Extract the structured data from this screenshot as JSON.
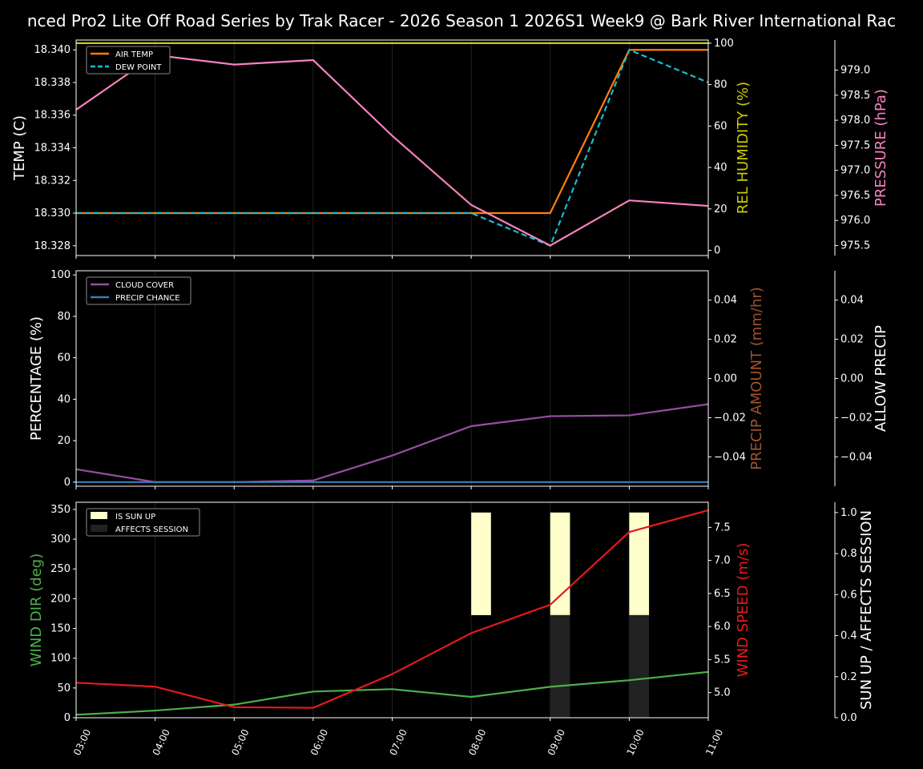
{
  "title": "nced Pro2 Lite Off Road Series by Trak Racer - 2026 Season 1 2026S1 Week9 @ Bark River International Rac",
  "chart_data": [
    {
      "type": "line",
      "x": [
        "03:00",
        "04:00",
        "05:00",
        "06:00",
        "07:00",
        "08:00",
        "09:00",
        "10:00",
        "11:00"
      ],
      "ylabel": "TEMP (C)",
      "ylim": [
        18.3274,
        18.3406
      ],
      "yticks": [
        "18.328",
        "18.330",
        "18.332",
        "18.334",
        "18.336",
        "18.338",
        "18.340"
      ],
      "right_axes": [
        {
          "label": "REL HUMIDITY (%)",
          "color": "#cccc00",
          "ylim": [
            -2.5,
            101.5
          ],
          "ticks": [
            "0",
            "20",
            "40",
            "60",
            "80",
            "100"
          ]
        },
        {
          "label": "PRESSURE (hPa)",
          "color": "#f781bf",
          "ylim": [
            975.3,
            979.6
          ],
          "ticks": [
            "975.5",
            "976.0",
            "976.5",
            "977.0",
            "977.5",
            "978.0",
            "978.5",
            "979.0"
          ]
        }
      ],
      "series": [
        {
          "name": "AIR TEMP",
          "color": "#ff7f0e",
          "axis": "left",
          "values": [
            18.33,
            18.33,
            18.33,
            18.33,
            18.33,
            18.33,
            18.33,
            18.34,
            18.34
          ]
        },
        {
          "name": "DEW POINT",
          "color": "#17becf",
          "dashed": true,
          "axis": "left",
          "values": [
            18.33,
            18.33,
            18.33,
            18.33,
            18.33,
            18.33,
            18.328,
            18.34,
            18.338
          ]
        },
        {
          "color": "#cccc00",
          "axis": "right0",
          "values": [
            100,
            100,
            100,
            100,
            100,
            100,
            100,
            100,
            100
          ]
        },
        {
          "color": "#f781bf",
          "axis": "right1",
          "values": [
            978.21,
            979.3,
            979.11,
            979.2,
            977.69,
            976.31,
            975.5,
            976.4,
            976.29
          ]
        }
      ],
      "legend": "top-left",
      "grid": true
    },
    {
      "type": "line",
      "x": [
        "03:00",
        "04:00",
        "05:00",
        "06:00",
        "07:00",
        "08:00",
        "09:00",
        "10:00",
        "11:00"
      ],
      "ylabel": "PERCENTAGE (%)",
      "ylim": [
        -2,
        102
      ],
      "yticks": [
        "0",
        "20",
        "40",
        "60",
        "80",
        "100"
      ],
      "right_axes": [
        {
          "label": "PRECIP AMOUNT (mm/hr)",
          "color": "#a0522d",
          "ylim": [
            -0.055,
            0.055
          ],
          "ticks": [
            "−0.04",
            "−0.02",
            "0.00",
            "0.02",
            "0.04"
          ]
        },
        {
          "label": "ALLOW PRECIP",
          "color": "#ffffff",
          "ylim": [
            -0.055,
            0.055
          ],
          "ticks": [
            "−0.04",
            "−0.02",
            "0.00",
            "0.02",
            "0.04"
          ]
        }
      ],
      "series": [
        {
          "name": "CLOUD COVER",
          "color": "#984ea3",
          "axis": "left",
          "values": [
            6.2,
            0,
            0,
            0.8,
            12.8,
            27,
            31.8,
            32.2,
            37.6
          ]
        },
        {
          "name": "PRECIP CHANCE",
          "color": "#377eb8",
          "axis": "left",
          "values": [
            0,
            0,
            0,
            0,
            0,
            0,
            0,
            0,
            0
          ]
        }
      ],
      "legend": "top-left",
      "grid": true
    },
    {
      "type": "line",
      "x": [
        "03:00",
        "04:00",
        "05:00",
        "06:00",
        "07:00",
        "08:00",
        "09:00",
        "10:00",
        "11:00"
      ],
      "ylabel": "WIND DIR (deg)",
      "ylabel_color": "#4daf4a",
      "ylim": [
        0,
        362
      ],
      "yticks": [
        "0",
        "50",
        "100",
        "150",
        "200",
        "250",
        "300",
        "350"
      ],
      "right_axes": [
        {
          "label": "WIND SPEED (m/s)",
          "color": "#e41a1c",
          "ylim": [
            4.62,
            7.88
          ],
          "ticks": [
            "5.0",
            "5.5",
            "6.0",
            "6.5",
            "7.0",
            "7.5"
          ]
        },
        {
          "label": "SUN UP / AFFECTS SESSION",
          "color": "#ffffff",
          "ylim": [
            0,
            1.05
          ],
          "ticks": [
            "0.0",
            "0.2",
            "0.4",
            "0.6",
            "0.8",
            "1.0"
          ]
        }
      ],
      "series": [
        {
          "color": "#4daf4a",
          "axis": "left",
          "values": [
            5,
            12,
            22,
            44,
            48,
            35,
            52,
            63,
            77
          ]
        },
        {
          "color": "#e41a1c",
          "axis": "right0",
          "values": [
            5.15,
            5.09,
            4.78,
            4.77,
            5.28,
            5.9,
            6.33,
            7.43,
            7.76
          ]
        }
      ],
      "bars": [
        {
          "name": "IS SUN UP",
          "color": "#ffffcc",
          "axis": "right1",
          "from": 0.5,
          "to": 1.0,
          "at": [
            "08:00",
            "09:00",
            "10:00"
          ]
        },
        {
          "name": "AFFECTS SESSION",
          "color": "#222222",
          "axis": "right1",
          "from": 0.0,
          "to": 0.5,
          "at": [
            "09:00",
            "10:00"
          ]
        }
      ],
      "legend": "top-left",
      "grid": true
    }
  ]
}
